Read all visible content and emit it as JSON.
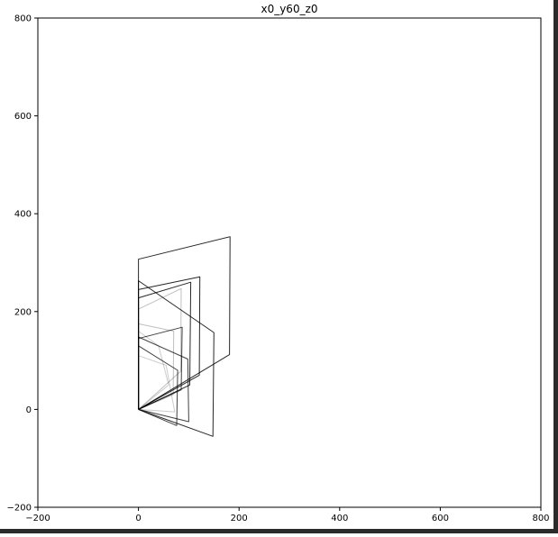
{
  "chart_data": {
    "type": "line",
    "title": "x0_y60_z0",
    "xlabel": "",
    "ylabel": "",
    "xlim": [
      -200,
      800
    ],
    "ylim": [
      -200,
      800
    ],
    "xticks": [
      "-200",
      "0",
      "200",
      "400",
      "600",
      "800"
    ],
    "yticks": [
      "-200",
      "0",
      "200",
      "400",
      "600",
      "800"
    ],
    "grid": false,
    "line_color": "#000000",
    "series": [
      {
        "opacity": 0.85,
        "points": [
          [
            0,
            0
          ],
          [
            0,
            307
          ],
          [
            182,
            353
          ],
          [
            181,
            112
          ],
          [
            0,
            0
          ]
        ]
      },
      {
        "opacity": 0.85,
        "points": [
          [
            0,
            0
          ],
          [
            0,
            263
          ],
          [
            150,
            157
          ],
          [
            148,
            -55
          ],
          [
            0,
            0
          ]
        ]
      },
      {
        "opacity": 0.85,
        "points": [
          [
            0,
            0
          ],
          [
            0,
            245
          ],
          [
            122,
            271
          ],
          [
            121,
            70
          ],
          [
            0,
            0
          ]
        ]
      },
      {
        "opacity": 0.85,
        "points": [
          [
            0,
            0
          ],
          [
            0,
            228
          ],
          [
            104,
            260
          ],
          [
            102,
            50
          ],
          [
            0,
            0
          ]
        ]
      },
      {
        "opacity": 0.75,
        "points": [
          [
            0,
            0
          ],
          [
            0,
            148
          ],
          [
            98,
            103
          ],
          [
            100,
            -25
          ],
          [
            0,
            0
          ]
        ]
      },
      {
        "opacity": 0.75,
        "points": [
          [
            0,
            0
          ],
          [
            0,
            145
          ],
          [
            87,
            168
          ],
          [
            85,
            40
          ],
          [
            0,
            0
          ]
        ]
      },
      {
        "opacity": 0.75,
        "points": [
          [
            0,
            0
          ],
          [
            0,
            130
          ],
          [
            78,
            80
          ],
          [
            76,
            -33
          ],
          [
            0,
            0
          ]
        ]
      },
      {
        "opacity": 0.25,
        "points": [
          [
            0,
            0
          ],
          [
            0,
            205
          ],
          [
            85,
            247
          ],
          [
            84,
            78
          ],
          [
            0,
            0
          ]
        ]
      },
      {
        "opacity": 0.25,
        "points": [
          [
            0,
            0
          ],
          [
            0,
            175
          ],
          [
            70,
            160
          ],
          [
            69,
            30
          ],
          [
            0,
            0
          ]
        ]
      },
      {
        "opacity": 0.2,
        "points": [
          [
            0,
            0
          ],
          [
            0,
            160
          ],
          [
            40,
            130
          ],
          [
            60,
            50
          ],
          [
            0,
            0
          ]
        ]
      },
      {
        "opacity": 0.2,
        "points": [
          [
            0,
            0
          ],
          [
            0,
            110
          ],
          [
            55,
            90
          ],
          [
            72,
            -5
          ],
          [
            0,
            0
          ]
        ]
      }
    ]
  }
}
